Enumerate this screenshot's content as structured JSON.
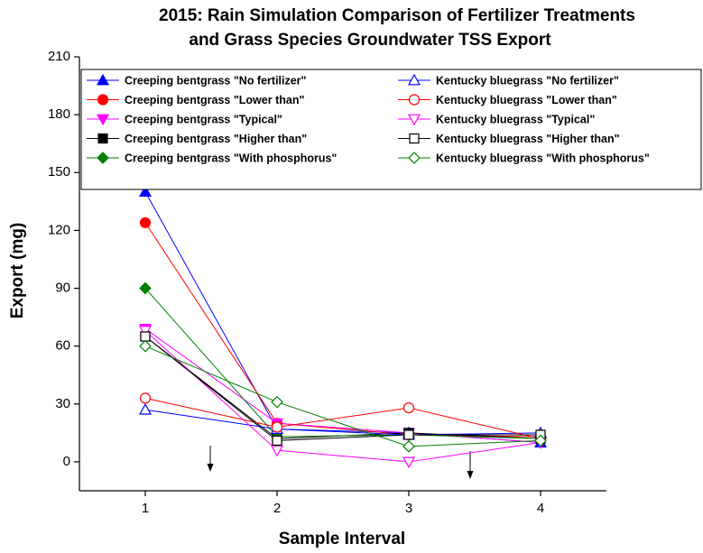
{
  "chart_data": {
    "type": "line",
    "title": [
      "2015: Rain Simulation Comparison of Fertilizer Treatments",
      "and Grass Species Groundwater TSS Export"
    ],
    "x_label": "Sample Interval",
    "y_label": "Export (mg)",
    "x": [
      1,
      2,
      3,
      4
    ],
    "xlim": [
      0.5,
      4.5
    ],
    "xticks": [
      1,
      2,
      3,
      4
    ],
    "ylim": [
      -15,
      210
    ],
    "yticks": [
      0,
      30,
      60,
      90,
      120,
      150,
      180,
      210
    ],
    "legend": "top",
    "series": [
      {
        "name": "Creeping bentgrass \"No fertilizer\"",
        "color": "#0000ff",
        "marker": "triangle-up",
        "filled": true,
        "values": [
          140,
          17,
          15,
          10
        ]
      },
      {
        "name": "Creeping bentgrass \"Lower than\"",
        "color": "#ff0000",
        "marker": "circle",
        "filled": true,
        "values": [
          124,
          20,
          14,
          13
        ]
      },
      {
        "name": "Creeping bentgrass \"Typical\"",
        "color": "#ff00ff",
        "marker": "triangle-down",
        "filled": true,
        "values": [
          69,
          20,
          15,
          10
        ]
      },
      {
        "name": "Creeping bentgrass \"Higher than\"",
        "color": "#000000",
        "marker": "square",
        "filled": true,
        "values": [
          65,
          12,
          15,
          12
        ]
      },
      {
        "name": "Creeping bentgrass \"With phosphorus\"",
        "color": "#008000",
        "marker": "diamond",
        "filled": true,
        "values": [
          90,
          13,
          14,
          12
        ]
      },
      {
        "name": "Kentucky bluegrass \"No fertilizer\"",
        "color": "#0000ff",
        "marker": "triangle-up",
        "filled": false,
        "values": [
          27,
          17,
          14,
          15
        ]
      },
      {
        "name": "Kentucky bluegrass \"Lower than\"",
        "color": "#ff0000",
        "marker": "circle",
        "filled": false,
        "values": [
          33,
          18,
          28,
          12
        ]
      },
      {
        "name": "Kentucky bluegrass \"Typical\"",
        "color": "#ff00ff",
        "marker": "triangle-down",
        "filled": false,
        "values": [
          68,
          6,
          0,
          10
        ]
      },
      {
        "name": "Kentucky bluegrass \"Higher than\"",
        "color": "#000000",
        "marker": "square",
        "filled": false,
        "values": [
          65,
          11,
          14,
          14
        ]
      },
      {
        "name": "Kentucky bluegrass \"With phosphorus\"",
        "color": "#008000",
        "marker": "diamond",
        "filled": false,
        "values": [
          60,
          31,
          8,
          11
        ]
      }
    ]
  }
}
